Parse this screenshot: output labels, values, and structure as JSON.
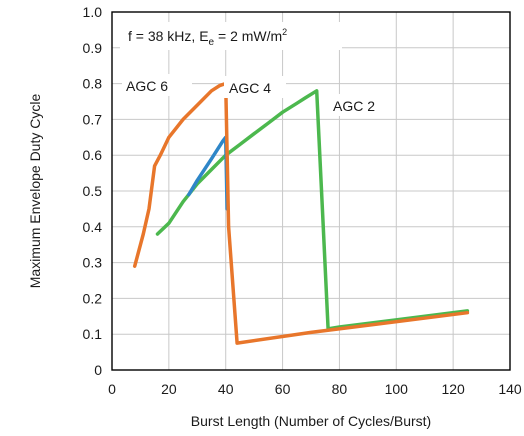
{
  "chart_data": {
    "type": "line",
    "xlabel": "Burst Length (Number of Cycles/Burst)",
    "ylabel": "Maximum Envelope Duty Cycle",
    "xlim": [
      0,
      140
    ],
    "ylim": [
      0,
      1.0
    ],
    "xticks": [
      "0",
      "20",
      "40",
      "60",
      "80",
      "100",
      "120",
      "140"
    ],
    "yticks": [
      "0",
      "0.1",
      "0.2",
      "0.3",
      "0.4",
      "0.5",
      "0.6",
      "0.7",
      "0.8",
      "0.9",
      "1.0"
    ],
    "grid": true,
    "annotation": {
      "main": "f = 38 kHz, E",
      "sub": "e",
      "mid": " = 2 mW/m",
      "sup": "2"
    },
    "series": [
      {
        "name": "AGC 6",
        "color": "#E8762B",
        "x": [
          8,
          11,
          13,
          15,
          17,
          20,
          25,
          30,
          35,
          38,
          40,
          41,
          44,
          70,
          125
        ],
        "y": [
          0.29,
          0.38,
          0.45,
          0.57,
          0.6,
          0.65,
          0.7,
          0.74,
          0.78,
          0.795,
          0.8,
          0.4,
          0.075,
          0.105,
          0.16
        ]
      },
      {
        "name": "AGC 4",
        "color": "#2E86C8",
        "x": [
          27,
          30,
          35,
          39,
          40,
          40.5
        ],
        "y": [
          0.49,
          0.53,
          0.59,
          0.64,
          0.65,
          0.45
        ]
      },
      {
        "name": "AGC 2",
        "color": "#4CB84E",
        "x": [
          16,
          20,
          25,
          30,
          35,
          40,
          45,
          50,
          55,
          60,
          65,
          68,
          72,
          74,
          76,
          80,
          100,
          125
        ],
        "y": [
          0.38,
          0.41,
          0.47,
          0.52,
          0.56,
          0.6,
          0.63,
          0.66,
          0.69,
          0.72,
          0.745,
          0.76,
          0.78,
          0.45,
          0.115,
          0.12,
          0.14,
          0.165
        ]
      }
    ],
    "series_labels": [
      "AGC 6",
      "AGC 4",
      "AGC 2"
    ]
  }
}
